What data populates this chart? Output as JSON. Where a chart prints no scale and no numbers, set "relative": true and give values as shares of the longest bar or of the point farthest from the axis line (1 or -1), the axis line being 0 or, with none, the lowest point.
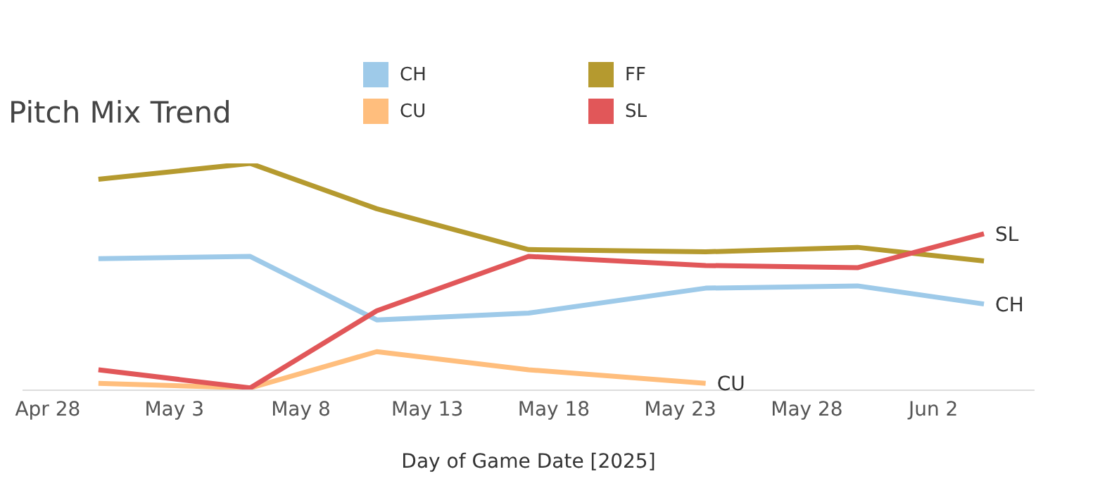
{
  "chart_data": {
    "type": "line",
    "title": "Pitch Mix Trend",
    "xlabel": "Day of Game Date [2025]",
    "relative": true,
    "x": [
      "2025-04-30",
      "2025-05-06",
      "2025-05-11",
      "2025-05-17",
      "2025-05-24",
      "2025-05-30",
      "2025-06-04"
    ],
    "xlim": [
      "2025-04-27",
      "2025-06-06"
    ],
    "xticks": [
      {
        "value": "2025-04-28",
        "label": "Apr 28"
      },
      {
        "value": "2025-05-03",
        "label": "May 3"
      },
      {
        "value": "2025-05-08",
        "label": "May 8"
      },
      {
        "value": "2025-05-13",
        "label": "May 13"
      },
      {
        "value": "2025-05-18",
        "label": "May 18"
      },
      {
        "value": "2025-05-23",
        "label": "May 23"
      },
      {
        "value": "2025-05-28",
        "label": "May 28"
      },
      {
        "value": "2025-06-02",
        "label": "Jun 2"
      }
    ],
    "series": [
      {
        "name": "CH",
        "color": "#9ecae9",
        "values": [
          0.58,
          0.59,
          0.31,
          0.34,
          0.45,
          0.46,
          0.38
        ]
      },
      {
        "name": "CU",
        "color": "#ffbe7d",
        "values": [
          0.03,
          0.01,
          0.17,
          0.09,
          0.03,
          null,
          null
        ]
      },
      {
        "name": "FF",
        "color": "#b59a2f",
        "values": [
          0.93,
          1,
          0.8,
          0.62,
          0.61,
          0.63,
          0.57
        ]
      },
      {
        "name": "SL",
        "color": "#e15759",
        "values": [
          0.09,
          0.01,
          0.35,
          0.59,
          0.55,
          0.54,
          0.69
        ]
      }
    ],
    "legend": "top",
    "marker": "none",
    "line_style": "solid"
  }
}
